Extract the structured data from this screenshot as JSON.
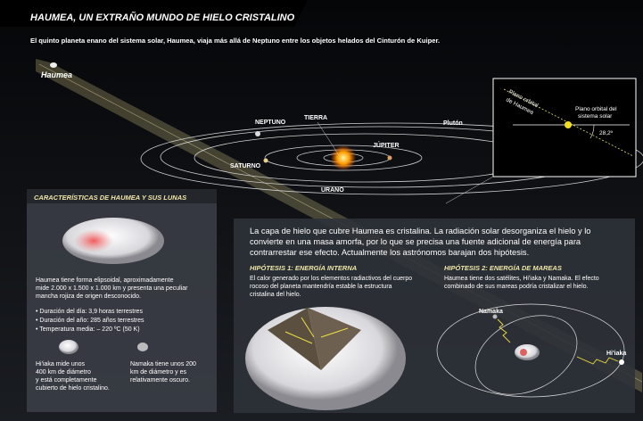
{
  "header": {
    "title": "HAUMEA, UN EXTRAÑO MUNDO DE HIELO CRISTALINO",
    "subtitle": "El quinto planeta enano del sistema solar, Haumea, viaja más allá de Neptuno entre los objetos helados del Cinturón de Kuiper."
  },
  "orbits": {
    "haumea": "Haumea",
    "neptuno": "NEPTUNO",
    "tierra": "TIERRA",
    "jupiter": "JÚPITER",
    "saturno": "SATURNO",
    "urano": "URANO",
    "pluton": "Plutón"
  },
  "inset": {
    "haumea_plane": [
      "Plano orbital",
      "de Haumea"
    ],
    "solar_plane": [
      "Plano orbital del",
      "sistema solar"
    ],
    "angle": "28,2º"
  },
  "left_panel": {
    "title": "CARACTERÍSTICAS DE HAUMEA Y SUS LUNAS",
    "description": [
      "Haumea tiene forma elipsoidal, aproximadamente",
      "mide 2.000 x 1.500 x 1.000 km y presenta una peculiar",
      "mancha rojiza de origen desconocido."
    ],
    "facts": [
      "• Duración del día: 3,9 horas terrestres",
      "• Duración del año: 285 años terrestres",
      "• Temperatura media: – 220 ºC (50 K)"
    ],
    "hiiaka": [
      "Hi'iaka mide unos",
      "400 km de diámetro",
      "y está completamente",
      "cubierto de hielo cristalino."
    ],
    "namaka": [
      "Namaka tiene unos 200",
      "km de diámetro y es",
      "relativamente oscuro."
    ]
  },
  "right_panel": {
    "intro": [
      "La capa de hielo que cubre Haumea es cristalina. La radiación solar desorganiza el hielo y lo",
      "convierte en una masa amorfa, por lo que se precisa una fuente adicional de energía para",
      "contrarrestar ese efecto. Actualmente los astrónomos barajan dos hipótesis."
    ],
    "hypothesis_1": {
      "title": "HIPÓTESIS 1: ENERGÍA INTERNA",
      "text": [
        "El calor generado por los elementos radiactivos del cuerpo",
        "rocoso del planeta mantendría estable la estructura",
        "cristalina del hielo."
      ]
    },
    "hypothesis_2": {
      "title": "HIPÓTESIS 2: ENERGÍA DE MAREAS",
      "text": [
        "Haumea tiene dos satélites, Hi'iaka y Namaka. El efecto",
        "combinado de sus mareas podría cristalizar el hielo."
      ]
    },
    "namaka_label": "Namaka",
    "hiiaka_label": "Hi'iaka"
  }
}
